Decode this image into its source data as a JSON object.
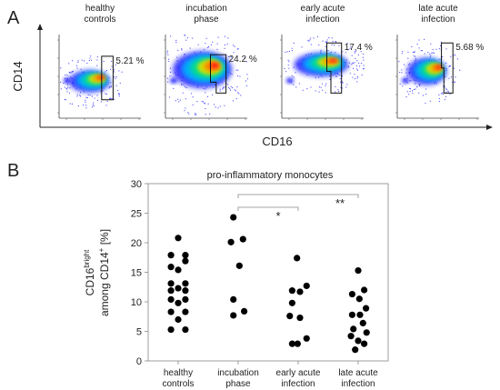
{
  "figure": {
    "panel_a_label": "A",
    "panel_b_label": "B",
    "panel_a": {
      "y_axis_label": "CD14",
      "x_axis_label": "CD16",
      "plots": [
        {
          "title_line1": "healthy",
          "title_line2": "controls",
          "gate_percent": "5.21 %"
        },
        {
          "title_line1": "incubation",
          "title_line2": "phase",
          "gate_percent": "24.2 %"
        },
        {
          "title_line1": "early acute",
          "title_line2": "infection",
          "gate_percent": "17.4 %"
        },
        {
          "title_line1": "late acute",
          "title_line2": "infection",
          "gate_percent": "5.68 %"
        }
      ],
      "density_colors": [
        "#1a1aff",
        "#00b0ff",
        "#00e08a",
        "#d8e000",
        "#ff8800",
        "#ff1a1a"
      ]
    },
    "panel_b": {
      "title": "pro-inflammatory monocytes",
      "ylabel_line1_main": "CD16",
      "ylabel_line1_sup": "bright",
      "ylabel_line2_main": "among CD14",
      "ylabel_line2_sup": "+",
      "ylabel_line2_end": " [%]",
      "significance": [
        {
          "from": 1,
          "to": 2,
          "label": "*"
        },
        {
          "from": 1,
          "to": 3,
          "label": "**"
        }
      ]
    }
  },
  "chart_data": {
    "type": "scatter",
    "title": "pro-inflammatory monocytes",
    "ylabel": "CD16bright among CD14+ [%]",
    "ylim": [
      0,
      30
    ],
    "yticks": [
      "0",
      "5",
      "10",
      "15",
      "20",
      "25",
      "30"
    ],
    "categories": [
      [
        "healthy",
        "controls"
      ],
      [
        "incubation",
        "phase"
      ],
      [
        "early acute",
        "infection"
      ],
      [
        "late acute",
        "infection"
      ]
    ],
    "series": [
      {
        "points": [
          {
            "v": 20.8,
            "o": 0
          },
          {
            "v": 17.9,
            "o": -0.12
          },
          {
            "v": 17.9,
            "o": 0.12
          },
          {
            "v": 16.9,
            "o": 0.12
          },
          {
            "v": 15.9,
            "o": -0.12
          },
          {
            "v": 15.4,
            "o": 0
          },
          {
            "v": 13.1,
            "o": -0.12
          },
          {
            "v": 13.1,
            "o": 0.12
          },
          {
            "v": 12.3,
            "o": 0
          },
          {
            "v": 11.9,
            "o": -0.12
          },
          {
            "v": 11.9,
            "o": 0.12
          },
          {
            "v": 10.4,
            "o": -0.12
          },
          {
            "v": 10.4,
            "o": 0.12
          },
          {
            "v": 9.8,
            "o": 0
          },
          {
            "v": 8.3,
            "o": -0.12
          },
          {
            "v": 8.3,
            "o": 0.12
          },
          {
            "v": 7.0,
            "o": 0
          },
          {
            "v": 5.3,
            "o": -0.12
          },
          {
            "v": 5.3,
            "o": 0.12
          }
        ]
      },
      {
        "points": [
          {
            "v": 24.3,
            "o": -0.08
          },
          {
            "v": 20.6,
            "o": 0.08
          },
          {
            "v": 20.1,
            "o": -0.12
          },
          {
            "v": 16.1,
            "o": 0.02
          },
          {
            "v": 10.4,
            "o": -0.08
          },
          {
            "v": 8.4,
            "o": 0.1
          },
          {
            "v": 7.7,
            "o": -0.08
          }
        ]
      },
      {
        "points": [
          {
            "v": 17.4,
            "o": -0.02
          },
          {
            "v": 12.7,
            "o": 0.14
          },
          {
            "v": 11.9,
            "o": -0.1
          },
          {
            "v": 11.7,
            "o": 0.03
          },
          {
            "v": 9.8,
            "o": -0.1
          },
          {
            "v": 7.6,
            "o": -0.14
          },
          {
            "v": 7.3,
            "o": 0.03
          },
          {
            "v": 3.8,
            "o": 0.14
          },
          {
            "v": 2.9,
            "o": -0.1
          },
          {
            "v": 2.9,
            "o": -0.01
          }
        ]
      },
      {
        "points": [
          {
            "v": 15.3,
            "o": 0
          },
          {
            "v": 12.0,
            "o": 0.1
          },
          {
            "v": 11.3,
            "o": -0.1
          },
          {
            "v": 10.5,
            "o": 0.02
          },
          {
            "v": 8.9,
            "o": 0.13
          },
          {
            "v": 7.8,
            "o": -0.1
          },
          {
            "v": 7.8,
            "o": 0.03
          },
          {
            "v": 6.4,
            "o": 0.08
          },
          {
            "v": 5.4,
            "o": -0.08
          },
          {
            "v": 4.8,
            "o": 0.14
          },
          {
            "v": 4.2,
            "o": -0.12
          },
          {
            "v": 3.4,
            "o": 0
          },
          {
            "v": 2.9,
            "o": 0.1
          },
          {
            "v": 1.9,
            "o": -0.05
          }
        ]
      }
    ]
  }
}
